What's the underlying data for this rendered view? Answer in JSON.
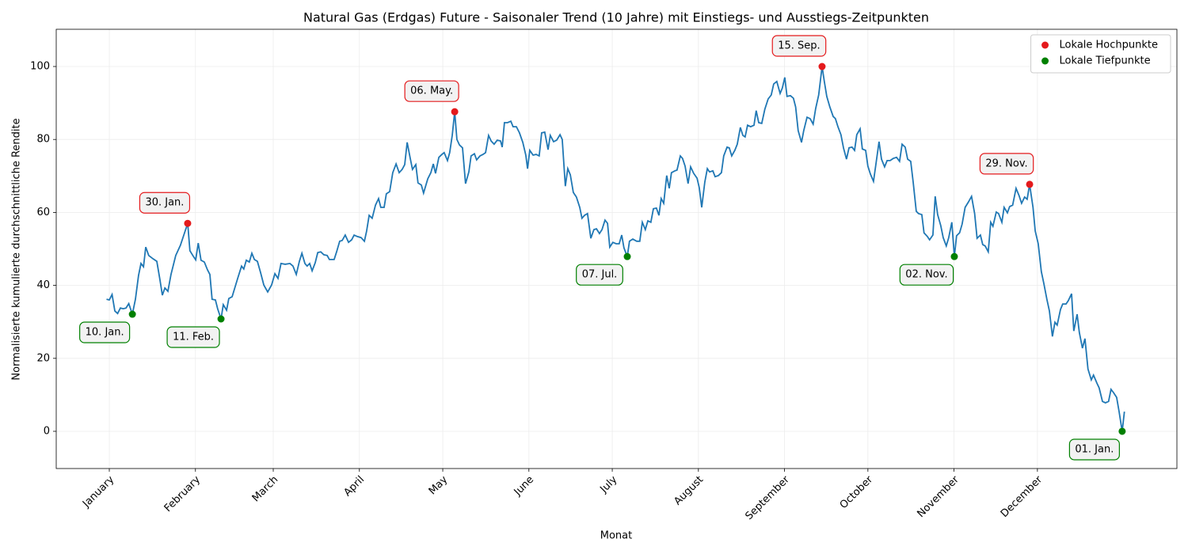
{
  "chart_data": {
    "type": "line",
    "title": "Natural Gas (Erdgas) Future - Saisonaler Trend (10 Jahre) mit Einstiegs- und Ausstiegs-Zeitpunkten",
    "xlabel": "Monat",
    "ylabel": "Normalisierte kumulierte durchschnittliche Rendite",
    "xlim": [
      -19.1,
      384.2
    ],
    "ylim": [
      -10.2,
      110.2
    ],
    "xticks": [
      {
        "value": 0,
        "label": "January"
      },
      {
        "value": 31,
        "label": "February"
      },
      {
        "value": 59,
        "label": "March"
      },
      {
        "value": 90,
        "label": "April"
      },
      {
        "value": 120,
        "label": "May"
      },
      {
        "value": 151,
        "label": "June"
      },
      {
        "value": 181,
        "label": "July"
      },
      {
        "value": 212,
        "label": "August"
      },
      {
        "value": 243,
        "label": "September"
      },
      {
        "value": 273,
        "label": "October"
      },
      {
        "value": 304,
        "label": "November"
      },
      {
        "value": 334,
        "label": "December"
      }
    ],
    "yticks": [
      0,
      20,
      40,
      60,
      80,
      100
    ],
    "grid": true,
    "legend": "upper right",
    "line": {
      "color": "#1f77b4",
      "x": [
        -1,
        0,
        1,
        2,
        3,
        4,
        5,
        6,
        7,
        8.3,
        9.4,
        10.5,
        11.4,
        12.3,
        13.1,
        14.2,
        15.7,
        17.1,
        18.2,
        19.1,
        20,
        21.1,
        22.2,
        23.9,
        25.6,
        27,
        28.2,
        29,
        30.2,
        31.1,
        32,
        33,
        34.2,
        35.3,
        36.2,
        37,
        38.2,
        39,
        40.2,
        41,
        42.2,
        43,
        44.2,
        46.2,
        47.6,
        48.4,
        49.3,
        50.4,
        51.3,
        52.2,
        53.3,
        54.4,
        55.6,
        57,
        58.4,
        59.6,
        60.7,
        61.8,
        63.3,
        65,
        66.1,
        67.3,
        68.4,
        69.3,
        70.4,
        71.2,
        72.1,
        73,
        74.1,
        75,
        76.1,
        77.2,
        78.4,
        79.2,
        80.9,
        81.8,
        82.9,
        83.8,
        84.9,
        86.1,
        87.2,
        88.1,
        89.2,
        90.6,
        91.8,
        92.6,
        93.5,
        94.6,
        95.8,
        96.9,
        97.7,
        98.9,
        99.7,
        100.9,
        102,
        103.2,
        104.3,
        105.4,
        106.3,
        107.2,
        108.3,
        109.1,
        110.3,
        111.1,
        112.3,
        113.1,
        114.6,
        115.7,
        116.6,
        117.4,
        118.6,
        119.7,
        120.5,
        121.7,
        122.5,
        123.4,
        124.3,
        125.1,
        126,
        127.1,
        128.2,
        129.4,
        130.2,
        131.4,
        132.2,
        133.4,
        134.5,
        135.4,
        136.5,
        137.4,
        138.5,
        139.6,
        140.8,
        141.4,
        142.2,
        143.3,
        144.5,
        145.3,
        146.5,
        147.6,
        148.8,
        149.9,
        150.5,
        151.3,
        152.5,
        153.6,
        154.7,
        155.6,
        156.7,
        157.9,
        158.7,
        159.9,
        161,
        162.2,
        163,
        164.1,
        165,
        165.9,
        167,
        168.1,
        169.3,
        170.1,
        171,
        172.1,
        173.3,
        174.4,
        175.3,
        176.4,
        177.3,
        178.4,
        179.3,
        180.1,
        181.2,
        182.4,
        183.5,
        184.4,
        185.2,
        186.4,
        187.2,
        188.4,
        189.8,
        190.9,
        191.8,
        192.9,
        193.8,
        194.9,
        195.8,
        196.9,
        197.8,
        198.6,
        199.5,
        200.6,
        201.5,
        202.3,
        203.5,
        204.3,
        205.5,
        206.3,
        207.2,
        208.3,
        209.2,
        210.3,
        211.5,
        212.3,
        213.2,
        214.3,
        215.2,
        216,
        217.2,
        218,
        219.2,
        220.3,
        221.1,
        222.3,
        223.1,
        224,
        225.1,
        226,
        227.1,
        228,
        228.8,
        229.7,
        230.8,
        232,
        232.8,
        233.7,
        234.8,
        235.9,
        237.1,
        238.2,
        239.1,
        240.2,
        241.4,
        242.2,
        243.1,
        243.9,
        245.1,
        246.2,
        247,
        247.9,
        249.1,
        249.9,
        251.1,
        252.2,
        253.3,
        254.2,
        255.3,
        256.5,
        257.3,
        258.2,
        259.3,
        260.5,
        261.3,
        262.2,
        263.3,
        264.2,
        265.3,
        266.2,
        267.3,
        268.2,
        269,
        270.2,
        271,
        272.2,
        273,
        273.9,
        275,
        275.9,
        277,
        277.9,
        279,
        279.9,
        281,
        282.1,
        283.3,
        284.4,
        285.3,
        286.4,
        287.3,
        288.4,
        289.3,
        290.4,
        291.2,
        292.4,
        293.2,
        294.4,
        295.2,
        296.4,
        297.2,
        298.1,
        299.2,
        300.1,
        301.2,
        302.1,
        303.2,
        304.1,
        304.9,
        306,
        306.9,
        308,
        309.2,
        310.3,
        311.4,
        312.3,
        313.5,
        314.3,
        315.2,
        316.3,
        317.2,
        318,
        319.2,
        320,
        321.2,
        322,
        323.2,
        324,
        325.1,
        326.3,
        327.4,
        328.3,
        329.4,
        330.3,
        331.2,
        332.4,
        333.2,
        334.3,
        335.4,
        336.3,
        337.4,
        338.3,
        339.4,
        340.3,
        341.1,
        342.3,
        343.1,
        344.3,
        345.1,
        346.3,
        347.1,
        348.3,
        349.1,
        350.2,
        351.1,
        352.2,
        353.4,
        354.2,
        355.4,
        356.2,
        357.4,
        358.5,
        359.6,
        360.5,
        361.4,
        362.5,
        363.4,
        364.5,
        365.3
      ],
      "values": [
        36.2,
        36,
        37.5,
        33,
        32.3,
        33.8,
        33.6,
        33.8,
        35,
        32.1,
        36.2,
        42.7,
        46,
        45.1,
        50.5,
        48.2,
        47.3,
        46.6,
        41.6,
        37.3,
        39.3,
        38.4,
        43,
        48.2,
        51,
        54.2,
        57,
        49.5,
        48,
        47,
        51.6,
        46.9,
        46.4,
        44.3,
        43,
        36.2,
        36,
        33.6,
        30.8,
        34.7,
        33.2,
        36.4,
        36.9,
        41.9,
        45.3,
        44.5,
        46.9,
        46.4,
        48.8,
        47.1,
        46.6,
        43.6,
        40.1,
        38.2,
        40.1,
        43.2,
        41.9,
        46,
        45.8,
        46,
        45.3,
        43,
        46.6,
        48.8,
        46,
        45.3,
        46,
        44,
        46.2,
        49,
        49.2,
        48.4,
        48.2,
        47.1,
        47.1,
        49.2,
        52.1,
        52.3,
        53.8,
        51.8,
        52.5,
        53.8,
        53.4,
        53.1,
        52.1,
        54.9,
        59.2,
        58.4,
        62,
        63.8,
        61.4,
        61.4,
        65.1,
        65.7,
        70.9,
        73.3,
        70.9,
        71.8,
        73.1,
        79.2,
        74.8,
        71.8,
        73.1,
        68.1,
        67.5,
        65.3,
        69.2,
        70.9,
        73.3,
        70.7,
        75.1,
        75.9,
        76.4,
        74.2,
        76.4,
        81.1,
        87.6,
        80,
        78.5,
        77.7,
        67.9,
        71.1,
        75.5,
        76.1,
        74.4,
        75.5,
        75.9,
        76.4,
        81.1,
        79.6,
        78.7,
        79.8,
        79.6,
        77.9,
        84.6,
        84.6,
        85,
        83.5,
        83.5,
        81.8,
        79.2,
        75.7,
        72,
        77,
        75.7,
        75.9,
        75.5,
        81.8,
        82,
        77.2,
        81.1,
        79.4,
        79.8,
        81.3,
        80,
        67.2,
        72,
        70.3,
        65.5,
        64.2,
        61.4,
        58.4,
        59.2,
        59.7,
        52.9,
        55.3,
        55.5,
        54.2,
        55.3,
        57.9,
        57,
        50.5,
        51.8,
        51.4,
        51.4,
        53.8,
        50.3,
        47.9,
        52.1,
        52.7,
        52.1,
        52.1,
        57.3,
        55.3,
        57.7,
        57.3,
        61,
        61.2,
        59.2,
        63.8,
        62.5,
        70.1,
        66.6,
        70.9,
        71.4,
        71.6,
        75.5,
        74.8,
        72.7,
        67.9,
        72.5,
        70.7,
        69.4,
        66.8,
        61.4,
        68.3,
        72,
        71.1,
        71.4,
        69.8,
        70.1,
        70.9,
        75.5,
        77.9,
        77.7,
        75.5,
        77,
        78.7,
        83.3,
        81.1,
        80.7,
        83.9,
        83.5,
        83.9,
        87.9,
        84.6,
        84.4,
        88.3,
        91.1,
        92.2,
        95.2,
        95.9,
        92.6,
        94.1,
        97,
        91.8,
        92,
        91.3,
        88.9,
        82.4,
        79.2,
        82.4,
        86.1,
        85.7,
        84.2,
        88.5,
        92.2,
        100,
        95.9,
        91.8,
        88.9,
        86.3,
        85.7,
        83.5,
        81.3,
        77.7,
        74.6,
        77.7,
        77.9,
        77,
        81.3,
        82.9,
        77.4,
        77,
        72.7,
        70.5,
        68.5,
        73.3,
        79.4,
        74.6,
        72.5,
        74.2,
        74.2,
        74.8,
        75.1,
        74,
        78.7,
        77.9,
        74.6,
        74,
        68.3,
        60.3,
        59.7,
        59.4,
        54.4,
        53.4,
        52.5,
        53.8,
        64.4,
        59.4,
        56.4,
        53.1,
        50.8,
        53.1,
        57.3,
        47.9,
        53.6,
        54.4,
        56.8,
        61.4,
        62.9,
        64.4,
        59.7,
        52.9,
        53.8,
        51.2,
        50.8,
        49.2,
        57.3,
        56.2,
        60.1,
        59.7,
        57.3,
        61.4,
        59.9,
        61.6,
        62,
        66.6,
        64.6,
        62.5,
        64.2,
        63.6,
        67.7,
        61.4,
        54.9,
        51.4,
        43.8,
        40.6,
        36.2,
        33,
        26,
        29.9,
        29.1,
        33.4,
        34.9,
        34.9,
        35.8,
        37.7,
        27.5,
        32.1,
        27.1,
        22.8,
        25.4,
        17.1,
        14.1,
        15.4,
        13.2,
        11.9,
        8.2,
        7.8,
        8.2,
        11.5,
        10.6,
        9.3,
        5.4,
        0,
        5.4
      ]
    },
    "series": [
      {
        "name": "Lokale Hochpunkte",
        "color": "#e41a1c",
        "side": "above",
        "x": [
          28.2,
          124.3,
          256.5,
          331.2
        ],
        "values": [
          57,
          87.6,
          100,
          67.7
        ],
        "labels": [
          "30. Jan.",
          "06. May.",
          "15. Sep.",
          "29. Nov."
        ]
      },
      {
        "name": "Lokale Tiefpunkte",
        "color": "#008000",
        "side": "below",
        "x": [
          8.3,
          40.2,
          186.4,
          304.1,
          364.5
        ],
        "values": [
          32.1,
          30.8,
          47.9,
          47.9,
          0
        ],
        "labels": [
          "10. Jan.",
          "11. Feb.",
          "07. Jul.",
          "02. Nov.",
          "01. Jan."
        ]
      }
    ]
  }
}
